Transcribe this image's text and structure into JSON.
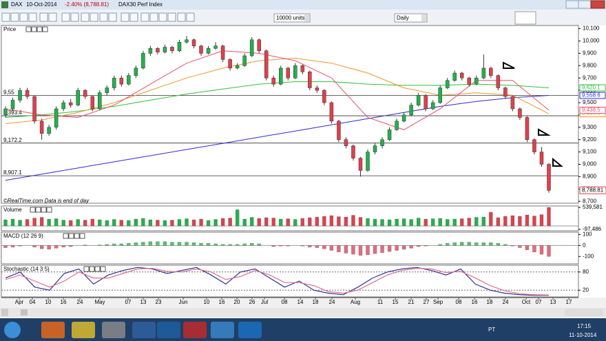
{
  "window": {
    "symbol": "DAX",
    "date": "10-Oct-2014",
    "change": "-2.40% (8,788.81)",
    "name": "DAX30 Perf Index"
  },
  "toolbar": {
    "units": "10000 units",
    "period": "Daily"
  },
  "chart_data": [
    {
      "type": "candlestick",
      "title": "Price",
      "up_color": "#22b14c",
      "down_color": "#e0404c",
      "last_label": "8,788.81",
      "ylim": [
        8690,
        10120
      ],
      "yticks": [
        {
          "value": 10100,
          "label": "10,100"
        },
        {
          "value": 10000,
          "label": "10,000"
        },
        {
          "value": 9900,
          "label": "9,900"
        },
        {
          "value": 9800,
          "label": "9,800"
        },
        {
          "value": 9700,
          "label": "9,700"
        },
        {
          "value": 9600,
          "label": "9,600"
        },
        {
          "value": 9500,
          "label": "9,500"
        },
        {
          "value": 9400,
          "label": "9,400"
        },
        {
          "value": 9300,
          "label": "9,300"
        },
        {
          "value": 9200,
          "label": "9,200"
        },
        {
          "value": 9100,
          "label": "9,100"
        },
        {
          "value": 9000,
          "label": "9,000"
        },
        {
          "value": 8900,
          "label": "8,900"
        },
        {
          "value": 8800,
          "label": "8,800"
        },
        {
          "value": 8700,
          "label": "8,700"
        }
      ],
      "levels": [
        {
          "value": 9558,
          "label": "9,55"
        },
        {
          "value": 9393.4,
          "label": "9,393.4"
        },
        {
          "value": 9172.2,
          "label": "9,172.2"
        },
        {
          "value": 8907.1,
          "label": "8,907.1"
        }
      ],
      "note": "©RealTime.com  Data is end of day",
      "ohlc": [
        [
          9400,
          9470,
          9380,
          9450
        ],
        [
          9450,
          9540,
          9430,
          9520
        ],
        [
          9520,
          9620,
          9500,
          9600
        ],
        [
          9600,
          9620,
          9530,
          9550
        ],
        [
          9550,
          9560,
          9330,
          9350
        ],
        [
          9350,
          9370,
          9200,
          9250
        ],
        [
          9250,
          9320,
          9230,
          9300
        ],
        [
          9300,
          9470,
          9280,
          9450
        ],
        [
          9450,
          9520,
          9430,
          9500
        ],
        [
          9500,
          9530,
          9460,
          9480
        ],
        [
          9480,
          9620,
          9470,
          9600
        ],
        [
          9600,
          9610,
          9530,
          9550
        ],
        [
          9550,
          9560,
          9430,
          9450
        ],
        [
          9450,
          9600,
          9440,
          9580
        ],
        [
          9580,
          9640,
          9560,
          9620
        ],
        [
          9620,
          9720,
          9600,
          9700
        ],
        [
          9700,
          9720,
          9630,
          9650
        ],
        [
          9650,
          9740,
          9640,
          9720
        ],
        [
          9720,
          9800,
          9700,
          9780
        ],
        [
          9780,
          9920,
          9770,
          9900
        ],
        [
          9900,
          9960,
          9880,
          9940
        ],
        [
          9940,
          9950,
          9890,
          9910
        ],
        [
          9910,
          9970,
          9900,
          9950
        ],
        [
          9950,
          9960,
          9900,
          9920
        ],
        [
          9920,
          10010,
          9910,
          9990
        ],
        [
          9990,
          10040,
          9980,
          10010
        ],
        [
          10010,
          10020,
          9940,
          9960
        ],
        [
          9960,
          9970,
          9880,
          9900
        ],
        [
          9900,
          9960,
          9890,
          9940
        ],
        [
          9940,
          9990,
          9930,
          9960
        ],
        [
          9960,
          9970,
          9830,
          9850
        ],
        [
          9850,
          9860,
          9760,
          9780
        ],
        [
          9780,
          9820,
          9770,
          9800
        ],
        [
          9800,
          9900,
          9790,
          9880
        ],
        [
          9880,
          10030,
          9870,
          10010
        ],
        [
          10010,
          10020,
          9900,
          9920
        ],
        [
          9920,
          9930,
          9680,
          9700
        ],
        [
          9700,
          9720,
          9630,
          9650
        ],
        [
          9650,
          9800,
          9640,
          9780
        ],
        [
          9780,
          9790,
          9680,
          9700
        ],
        [
          9700,
          9820,
          9690,
          9800
        ],
        [
          9800,
          9810,
          9730,
          9750
        ],
        [
          9750,
          9760,
          9600,
          9620
        ],
        [
          9620,
          9640,
          9580,
          9600
        ],
        [
          9600,
          9610,
          9480,
          9500
        ],
        [
          9500,
          9510,
          9330,
          9350
        ],
        [
          9350,
          9360,
          9180,
          9200
        ],
        [
          9200,
          9220,
          9130,
          9150
        ],
        [
          9150,
          9160,
          9030,
          9050
        ],
        [
          9050,
          9060,
          8900,
          8950
        ],
        [
          8950,
          9120,
          8940,
          9100
        ],
        [
          9100,
          9170,
          9080,
          9150
        ],
        [
          9150,
          9220,
          9130,
          9200
        ],
        [
          9200,
          9300,
          9190,
          9280
        ],
        [
          9280,
          9370,
          9270,
          9350
        ],
        [
          9350,
          9420,
          9340,
          9400
        ],
        [
          9400,
          9500,
          9390,
          9480
        ],
        [
          9480,
          9580,
          9470,
          9560
        ],
        [
          9560,
          9570,
          9430,
          9450
        ],
        [
          9450,
          9520,
          9440,
          9500
        ],
        [
          9500,
          9640,
          9490,
          9620
        ],
        [
          9620,
          9700,
          9610,
          9680
        ],
        [
          9680,
          9760,
          9670,
          9740
        ],
        [
          9740,
          9750,
          9680,
          9700
        ],
        [
          9700,
          9710,
          9630,
          9650
        ],
        [
          9650,
          9720,
          9640,
          9700
        ],
        [
          9700,
          9890,
          9690,
          9780
        ],
        [
          9780,
          9790,
          9700,
          9720
        ],
        [
          9720,
          9730,
          9600,
          9620
        ],
        [
          9620,
          9630,
          9530,
          9550
        ],
        [
          9550,
          9560,
          9430,
          9450
        ],
        [
          9450,
          9460,
          9360,
          9380
        ],
        [
          9380,
          9390,
          9180,
          9200
        ],
        [
          9200,
          9210,
          9080,
          9100
        ],
        [
          9100,
          9140,
          8980,
          9000
        ],
        [
          9000,
          9010,
          8770,
          8788.81
        ]
      ],
      "series": [
        {
          "color": "#2b2bd0",
          "last_label": "9,558.6",
          "values": [
            8870,
            8920,
            8970,
            9020,
            9070,
            9120,
            9170,
            9220,
            9270,
            9320,
            9370,
            9420,
            9470,
            9510,
            9540,
            9558.6
          ]
        },
        {
          "color": "#2fbf3a",
          "last_label": "9,620.1",
          "values": [
            9380,
            9400,
            9430,
            9470,
            9520,
            9570,
            9610,
            9650,
            9670,
            9670,
            9650,
            9640,
            9640,
            9650,
            9640,
            9620.1
          ]
        },
        {
          "color": "#f0962a",
          "last_label": "9,409.9",
          "values": [
            9330,
            9360,
            9420,
            9500,
            9600,
            9700,
            9780,
            9840,
            9860,
            9820,
            9740,
            9620,
            9560,
            9580,
            9560,
            9409.9
          ]
        },
        {
          "color": "#e8506a",
          "last_label": "9,438.5",
          "values": [
            9450,
            9400,
            9380,
            9480,
            9650,
            9820,
            9920,
            9900,
            9840,
            9700,
            9380,
            9280,
            9450,
            9680,
            9680,
            9438.5
          ]
        }
      ]
    },
    {
      "type": "bar",
      "title": "Volume",
      "up_color": "#22b14c",
      "down_color": "#e0404c",
      "ylim": [
        -120000,
        560000
      ],
      "yticks": [
        {
          "value": 539581,
          "label": "539,581"
        },
        {
          "value": -97486,
          "label": "-97,486"
        }
      ],
      "values": [
        180000,
        200000,
        170000,
        190000,
        230000,
        250000,
        200000,
        210000,
        170000,
        160000,
        190000,
        170000,
        200000,
        180000,
        160000,
        190000,
        170000,
        160000,
        200000,
        220000,
        180000,
        170000,
        160000,
        170000,
        190000,
        210000,
        180000,
        200000,
        160000,
        190000,
        220000,
        230000,
        470000,
        200000,
        250000,
        220000,
        240000,
        230000,
        200000,
        210000,
        190000,
        220000,
        240000,
        260000,
        280000,
        300000,
        270000,
        260000,
        310000,
        250000,
        220000,
        200000,
        190000,
        180000,
        200000,
        210000,
        190000,
        230000,
        200000,
        210000,
        220000,
        190000,
        200000,
        210000,
        230000,
        250000,
        260000,
        400000,
        240000,
        280000,
        300000,
        280000,
        320000,
        290000,
        330000,
        539581
      ]
    },
    {
      "type": "bar",
      "title": "MACD (12 26 9)",
      "up_color": "#52c46a",
      "down_color": "#e66a7c",
      "ylim": [
        -161,
        115
      ],
      "yticks": [
        100,
        0,
        -100
      ],
      "values": [
        -20,
        -15,
        -5,
        0,
        -15,
        -30,
        -35,
        -25,
        -15,
        -10,
        0,
        5,
        0,
        5,
        10,
        15,
        15,
        20,
        25,
        30,
        35,
        35,
        35,
        30,
        30,
        30,
        25,
        20,
        20,
        15,
        10,
        10,
        10,
        15,
        20,
        15,
        0,
        -10,
        -5,
        -5,
        0,
        -5,
        -15,
        -20,
        -30,
        -45,
        -60,
        -70,
        -80,
        -90,
        -85,
        -75,
        -65,
        -55,
        -45,
        -35,
        -25,
        -10,
        -5,
        0,
        10,
        20,
        25,
        30,
        30,
        25,
        25,
        25,
        20,
        10,
        -5,
        -20,
        -40,
        -60,
        -80,
        -100
      ]
    },
    {
      "type": "line",
      "title": "Stochastic (14 3 5)",
      "ylim": [
        0,
        100
      ],
      "yticks": [
        80,
        20
      ],
      "series": [
        {
          "color": "#30309a",
          "values": [
            60,
            80,
            30,
            20,
            75,
            90,
            40,
            70,
            85,
            95,
            90,
            75,
            85,
            95,
            70,
            40,
            80,
            90,
            60,
            30,
            50,
            20,
            10,
            5,
            30,
            60,
            80,
            90,
            95,
            85,
            70,
            90,
            40,
            20,
            10,
            5,
            3,
            3
          ]
        },
        {
          "color": "#e0708a",
          "values": [
            55,
            70,
            50,
            30,
            50,
            80,
            60,
            60,
            75,
            90,
            92,
            82,
            80,
            90,
            80,
            55,
            65,
            85,
            70,
            45,
            45,
            35,
            15,
            10,
            20,
            45,
            70,
            85,
            92,
            90,
            78,
            82,
            60,
            35,
            18,
            8,
            5,
            4
          ]
        }
      ]
    }
  ],
  "date_axis": [
    "Apr",
    "04",
    "10",
    "16",
    "24",
    "May",
    "07",
    "13",
    "23",
    "Jun",
    "10",
    "16",
    "20",
    "26",
    "Jul",
    "08",
    "14",
    "18",
    "24",
    "Aug",
    "11",
    "15",
    "21",
    "27",
    "Sep",
    "08",
    "16",
    "18",
    "24",
    "Oct",
    "07",
    "13",
    "17"
  ],
  "taskbar": {
    "language": "PT",
    "time": "17:15",
    "date": "11-10-2014"
  }
}
